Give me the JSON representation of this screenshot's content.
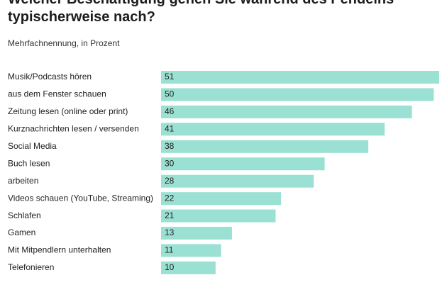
{
  "chart_data": {
    "type": "bar",
    "orientation": "horizontal",
    "title": "Welcher Beschäftigung gehen Sie während des Pendelns typischerweise nach?",
    "subtitle": "Mehrfachnennung, in Prozent",
    "categories": [
      "Musik/Podcasts hören",
      "aus dem Fenster schauen",
      "Zeitung lesen (online oder print)",
      "Kurznachrichten lesen / versenden",
      "Social Media",
      "Buch lesen",
      "arbeiten",
      "Videos schauen (YouTube, Streaming)",
      "Schlafen",
      "Gamen",
      "Mit Mitpendlern unterhalten",
      "Telefonieren"
    ],
    "values": [
      51,
      50,
      46,
      41,
      38,
      30,
      28,
      22,
      21,
      13,
      11,
      10
    ],
    "color": "#9ae0d3"
  }
}
